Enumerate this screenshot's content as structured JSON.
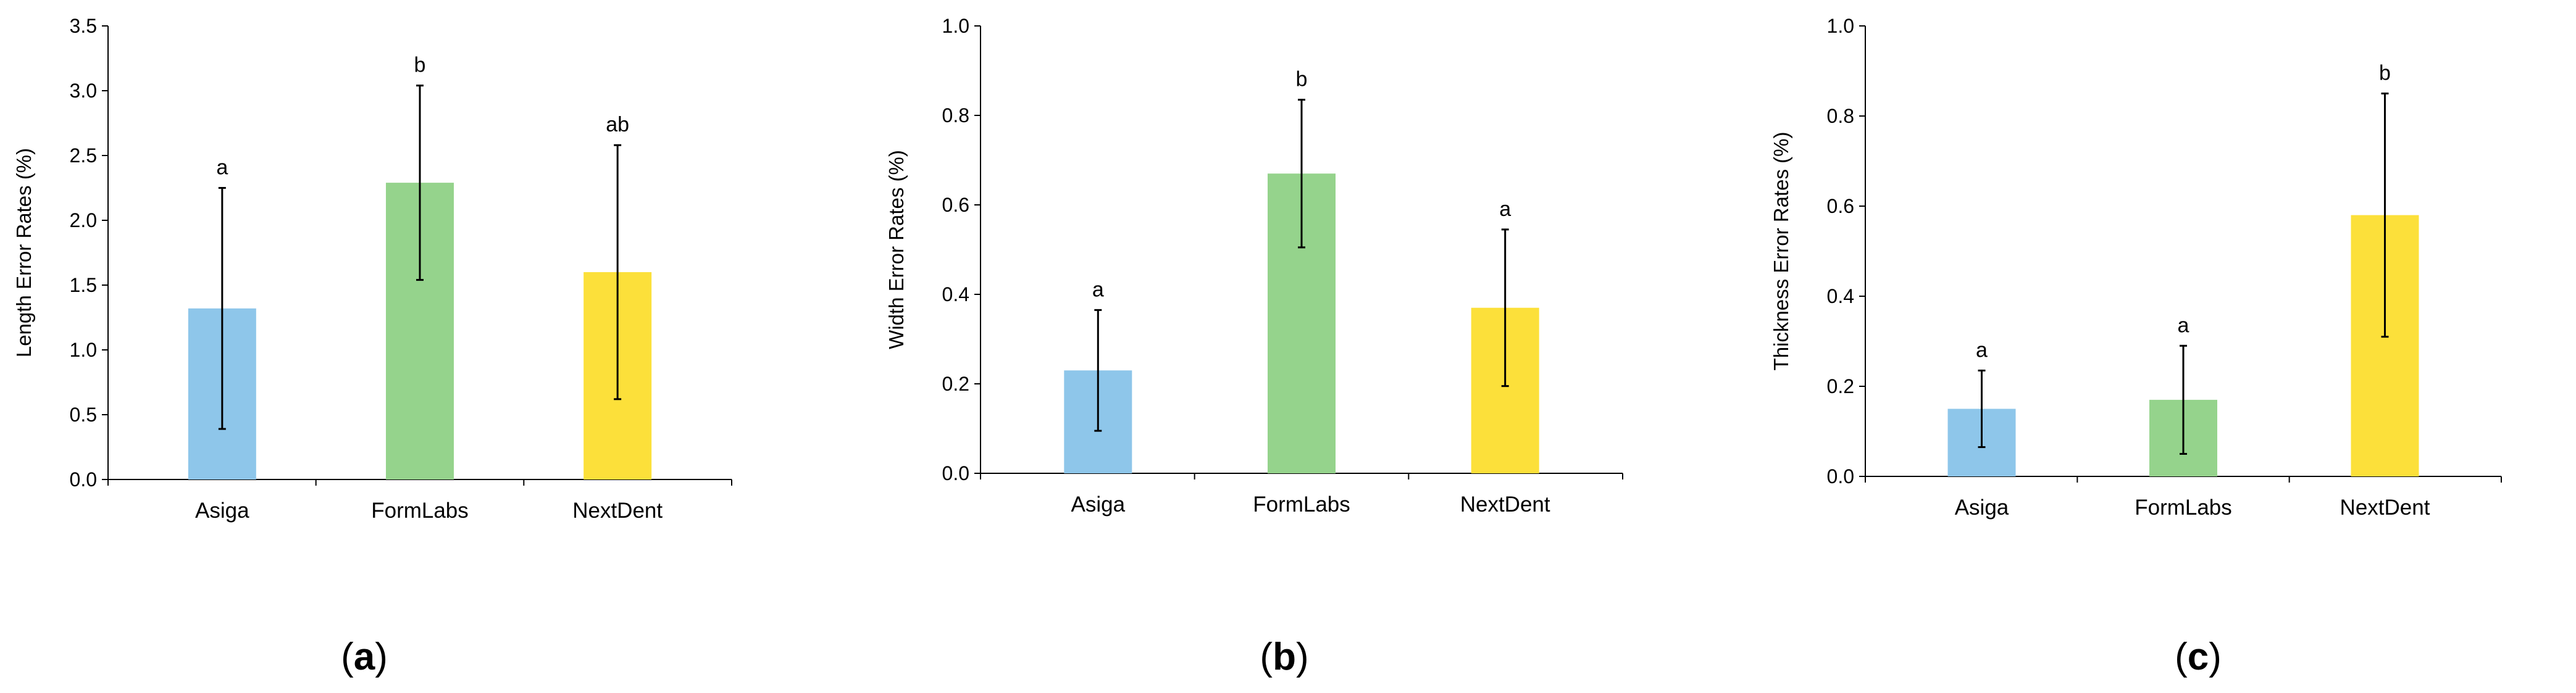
{
  "colors": {
    "asiga": "#8ec6ea",
    "formlabs": "#95d38c",
    "nextdent": "#fce03a"
  },
  "chart_data": [
    {
      "type": "bar",
      "panel_label": "a",
      "ylabel": "Length Error Rates (%)",
      "categories": [
        "Asiga",
        "FormLabs",
        "NextDent"
      ],
      "values": [
        1.32,
        2.29,
        1.6
      ],
      "errors": [
        0.93,
        0.75,
        0.98
      ],
      "significance": [
        "a",
        "b",
        "ab"
      ],
      "ylim": [
        0,
        3.5
      ],
      "yticks": [
        0.0,
        0.5,
        1.0,
        1.5,
        2.0,
        2.5,
        3.0,
        3.5
      ],
      "ytick_labels": [
        "0.0",
        "0.5",
        "1.0",
        "1.5",
        "2.0",
        "2.5",
        "3.0",
        "3.5"
      ],
      "grid": false
    },
    {
      "type": "bar",
      "panel_label": "b",
      "ylabel": "Width Error Rates (%)",
      "categories": [
        "Asiga",
        "FormLabs",
        "NextDent"
      ],
      "values": [
        0.23,
        0.67,
        0.37
      ],
      "errors": [
        0.135,
        0.165,
        0.175
      ],
      "significance": [
        "a",
        "b",
        "a"
      ],
      "ylim": [
        0,
        1.0
      ],
      "yticks": [
        0.0,
        0.2,
        0.4,
        0.6,
        0.8,
        1.0
      ],
      "ytick_labels": [
        "0.0",
        "0.2",
        "0.4",
        "0.6",
        "0.8",
        "1.0"
      ],
      "grid": false
    },
    {
      "type": "bar",
      "panel_label": "c",
      "ylabel": "Thickness Error Rates (%)",
      "categories": [
        "Asiga",
        "FormLabs",
        "NextDent"
      ],
      "values": [
        0.15,
        0.17,
        0.58
      ],
      "errors": [
        0.085,
        0.12,
        0.27
      ],
      "significance": [
        "a",
        "a",
        "b"
      ],
      "ylim": [
        0,
        1.0
      ],
      "yticks": [
        0.0,
        0.2,
        0.4,
        0.6,
        0.8,
        1.0
      ],
      "ytick_labels": [
        "0.0",
        "0.2",
        "0.4",
        "0.6",
        "0.8",
        "1.0"
      ],
      "grid": false
    }
  ]
}
